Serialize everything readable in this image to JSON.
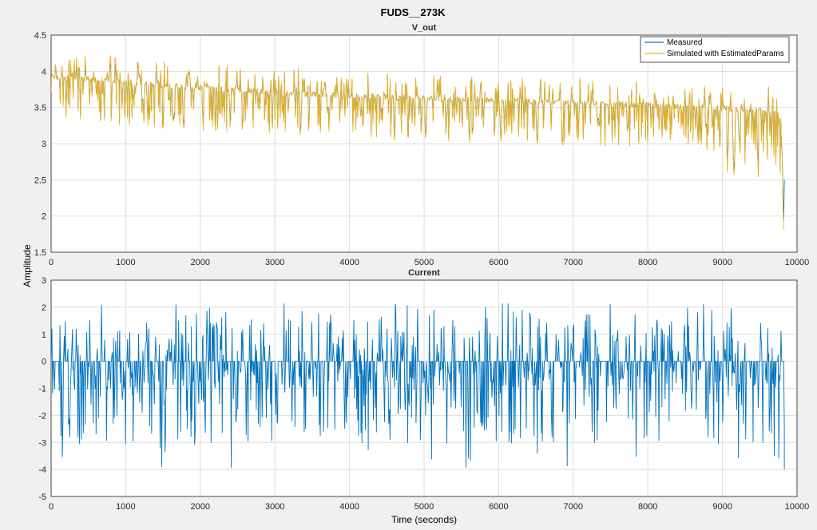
{
  "figure": {
    "title": "FUDS__273K",
    "xlabel": "Time (seconds)",
    "ylabel": "Amplitude"
  },
  "chart_data": [
    {
      "type": "line",
      "title": "V_out",
      "xlim": [
        0,
        10000
      ],
      "ylim": [
        1.5,
        4.5
      ],
      "x_ticks": [
        "0",
        "1000",
        "2000",
        "3000",
        "4000",
        "5000",
        "6000",
        "7000",
        "8000",
        "9000",
        "10000"
      ],
      "y_ticks": [
        "1.5",
        "2",
        "2.5",
        "3",
        "3.5",
        "4",
        "4.5"
      ],
      "grid": true,
      "legend": {
        "placement": "top-right",
        "entries": [
          "Measured",
          "Simulated with EstimatedParams"
        ]
      },
      "series": [
        {
          "name": "Measured",
          "color": "#0072BD",
          "baseline": [
            [
              0,
              3.93
            ],
            [
              1000,
              3.85
            ],
            [
              2000,
              3.77
            ],
            [
              3000,
              3.71
            ],
            [
              4000,
              3.66
            ],
            [
              5000,
              3.63
            ],
            [
              6000,
              3.6
            ],
            [
              7000,
              3.57
            ],
            [
              8000,
              3.53
            ],
            [
              9000,
              3.49
            ],
            [
              9750,
              3.45
            ],
            [
              9830,
              2.5
            ]
          ],
          "typical_range": [
            1.95,
            4.1
          ]
        },
        {
          "name": "Simulated with EstimatedParams",
          "color": "#EDB120",
          "baseline": [
            [
              0,
              3.93
            ],
            [
              1000,
              3.85
            ],
            [
              2000,
              3.77
            ],
            [
              3000,
              3.71
            ],
            [
              4000,
              3.66
            ],
            [
              5000,
              3.63
            ],
            [
              6000,
              3.6
            ],
            [
              7000,
              3.57
            ],
            [
              8000,
              3.53
            ],
            [
              9000,
              3.49
            ],
            [
              9750,
              3.45
            ],
            [
              9830,
              1.82
            ]
          ],
          "typical_range": [
            1.82,
            4.22
          ]
        }
      ]
    },
    {
      "type": "line",
      "title": "Current",
      "xlim": [
        0,
        10000
      ],
      "ylim": [
        -5,
        3
      ],
      "x_ticks": [
        "0",
        "1000",
        "2000",
        "3000",
        "4000",
        "5000",
        "6000",
        "7000",
        "8000",
        "9000",
        "10000"
      ],
      "y_ticks": [
        "-5",
        "-4",
        "-3",
        "-2",
        "-1",
        "0",
        "1",
        "2",
        "3"
      ],
      "grid": true,
      "series": [
        {
          "name": "Measured",
          "color": "#0072BD",
          "baseline": 0,
          "min": -4,
          "max": 2.15,
          "cycle_period": 1372,
          "x_end": 9830
        }
      ]
    }
  ]
}
